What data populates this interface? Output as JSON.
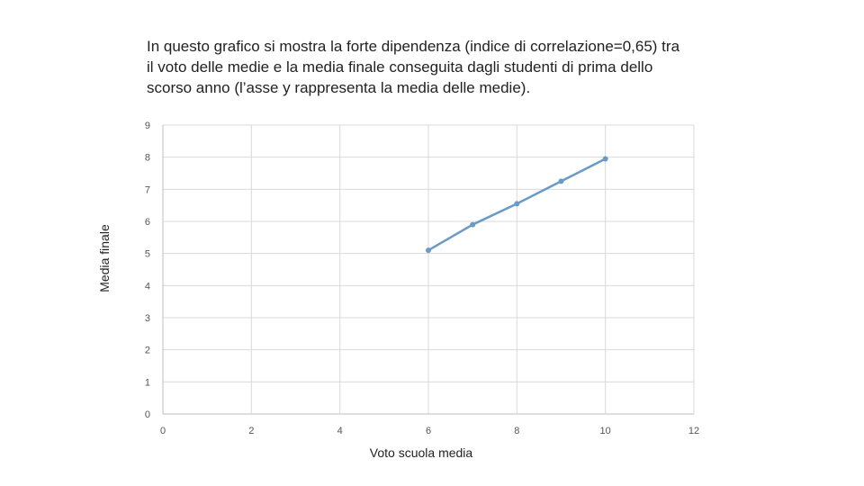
{
  "caption": {
    "line1": "In questo grafico si mostra la forte dipendenza (indice di correlazione=0,65) tra",
    "line2": "il voto delle medie e la media finale conseguita dagli studenti di prima dello",
    "line3": "scorso anno (l’asse y rappresenta la media delle medie)."
  },
  "chart_data": {
    "type": "scatter",
    "title": "",
    "xlabel": "Voto scuola media",
    "ylabel": "Media finale",
    "xlim": [
      0,
      12
    ],
    "ylim": [
      0,
      9
    ],
    "x_ticks": [
      0,
      2,
      4,
      6,
      8,
      10,
      12
    ],
    "y_ticks": [
      0,
      1,
      2,
      3,
      4,
      5,
      6,
      7,
      8,
      9
    ],
    "grid": true,
    "legend": "none",
    "series": [
      {
        "x": [
          6,
          7,
          8,
          9,
          10
        ],
        "y": [
          5.1,
          5.9,
          6.55,
          7.25,
          7.95
        ],
        "color": "#6a9bc8",
        "line": true,
        "markers": true
      }
    ]
  }
}
